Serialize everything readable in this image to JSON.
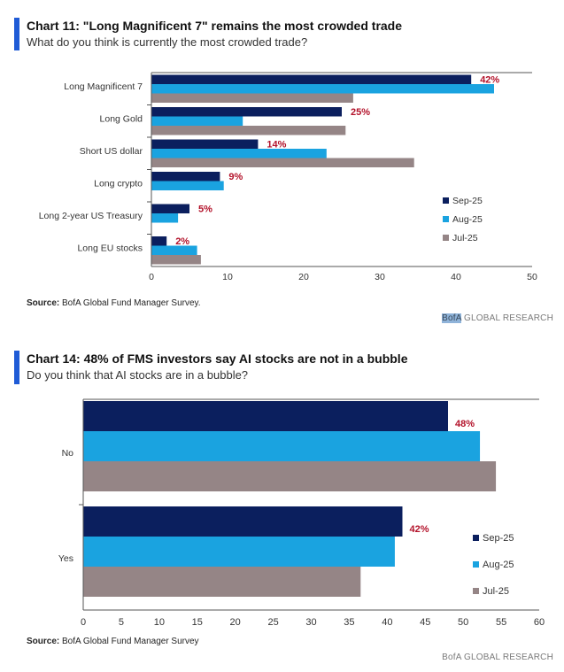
{
  "colors": {
    "accent": "#1f5bd6",
    "sep": "#0b1f5e",
    "aug": "#1aa3e0",
    "jul": "#958586",
    "annotation": "#b3122a"
  },
  "charts": [
    {
      "title": "Chart 11: \"Long Magnificent 7\" remains the most crowded trade",
      "subtitle": "What do you think is currently the most crowded trade?",
      "source_label": "Source:",
      "source_text": " BofA Global Fund Manager Survey.",
      "brand_highlight": "BofA",
      "brand_rest": " GLOBAL RESEARCH"
    },
    {
      "title": "Chart 14: 48% of FMS investors say AI stocks are not in a bubble",
      "subtitle": "Do you think that AI stocks are in a bubble?",
      "source_label": "Source:",
      "source_text": " BofA Global Fund Manager Survey",
      "brand_highlight": "",
      "brand_rest": "BofA GLOBAL RESEARCH"
    }
  ],
  "chart_data": [
    {
      "type": "bar",
      "orientation": "horizontal",
      "categories": [
        "Long Magnificent 7",
        "Long Gold",
        "Short US dollar",
        "Long crypto",
        "Long 2-year US Treasury",
        "Long EU stocks"
      ],
      "series": [
        {
          "name": "Sep-25",
          "values": [
            42,
            25,
            14,
            9,
            5,
            2
          ]
        },
        {
          "name": "Aug-25",
          "values": [
            45,
            12,
            23,
            9.5,
            3.5,
            6
          ]
        },
        {
          "name": "Jul-25",
          "values": [
            26.5,
            25.5,
            34.5,
            0,
            0,
            6.5
          ]
        }
      ],
      "annotations": [
        "42%",
        "25%",
        "14%",
        "9%",
        "5%",
        "2%"
      ],
      "xticks": [
        0,
        10,
        20,
        30,
        40,
        50
      ],
      "xlim": [
        0,
        50
      ],
      "legend_position": "right",
      "grid": false
    },
    {
      "type": "bar",
      "orientation": "horizontal",
      "categories": [
        "No",
        "Yes"
      ],
      "series": [
        {
          "name": "Sep-25",
          "values": [
            48,
            42
          ]
        },
        {
          "name": "Aug-25",
          "values": [
            52.2,
            41
          ]
        },
        {
          "name": "Jul-25",
          "values": [
            54.3,
            36.5
          ]
        }
      ],
      "annotations": [
        "48%",
        "42%"
      ],
      "xticks": [
        0,
        5,
        10,
        15,
        20,
        25,
        30,
        35,
        40,
        45,
        50,
        55,
        60
      ],
      "xlim": [
        0,
        60
      ],
      "legend_position": "right",
      "grid": false
    }
  ]
}
